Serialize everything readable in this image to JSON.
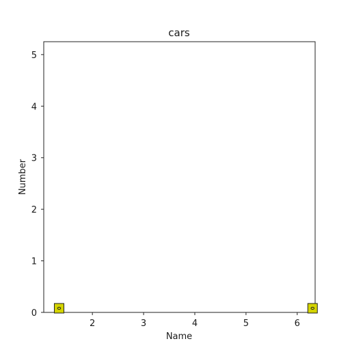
{
  "chart_data": {
    "type": "scatter",
    "title": "cars",
    "xlabel": "Name",
    "ylabel": "Number",
    "x_ticks": [
      "2",
      "3",
      "4",
      "5",
      "6"
    ],
    "y_ticks": [
      "0",
      "1",
      "2",
      "3",
      "4",
      "5"
    ],
    "xlim": [
      1.05,
      6.35
    ],
    "ylim": [
      0,
      5.25
    ],
    "grid": false,
    "series": [
      {
        "color": "#d4d400",
        "points": [
          {
            "x": 1.35,
            "y": 0.08
          },
          {
            "x": 6.3,
            "y": 0.08
          }
        ]
      }
    ]
  }
}
